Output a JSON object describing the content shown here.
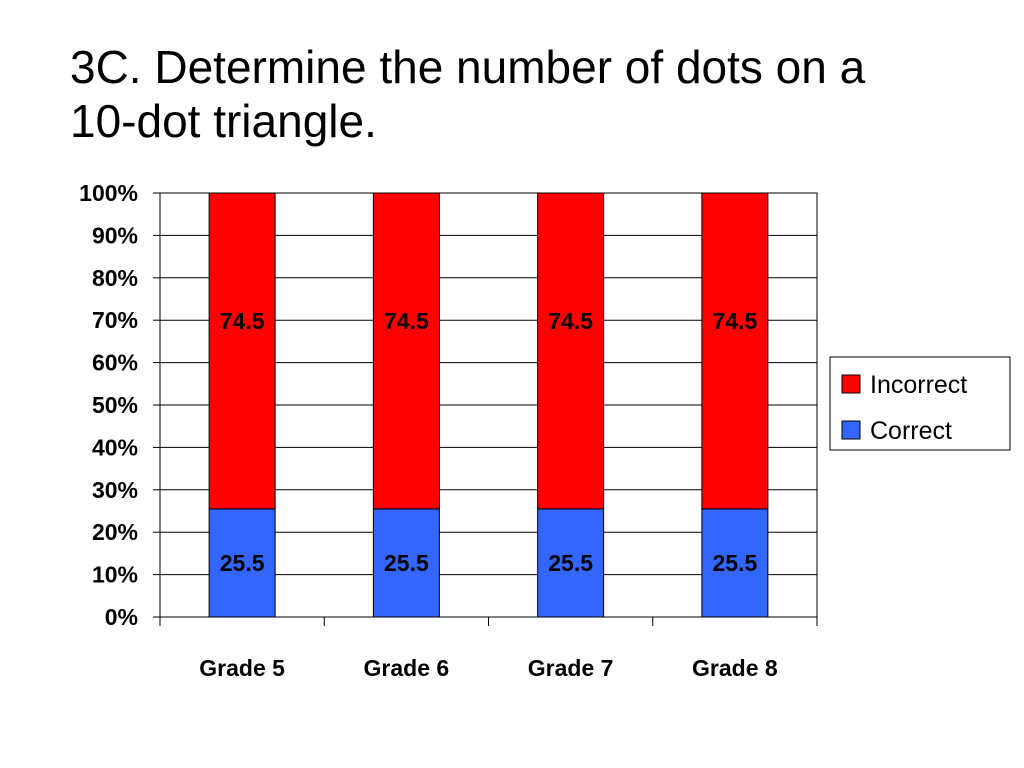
{
  "title_lines": [
    "3C.  Determine the number of dots on a",
    "10-dot triangle."
  ],
  "chart_data": {
    "type": "bar",
    "stacked": "percent",
    "categories": [
      "Grade 5",
      "Grade 6",
      "Grade 7",
      "Grade 8"
    ],
    "series": [
      {
        "name": "Correct",
        "values": [
          25.5,
          25.5,
          25.5,
          25.5
        ],
        "color": "#3366ff"
      },
      {
        "name": "Incorrect",
        "values": [
          74.5,
          74.5,
          74.5,
          74.5
        ],
        "color": "#ff0000"
      }
    ],
    "data_labels": true,
    "ylim": [
      0,
      100
    ],
    "yticks": [
      "0%",
      "10%",
      "20%",
      "30%",
      "40%",
      "50%",
      "60%",
      "70%",
      "80%",
      "90%",
      "100%"
    ],
    "grid": true,
    "legend_position": "right",
    "xlabel": "",
    "ylabel": ""
  }
}
